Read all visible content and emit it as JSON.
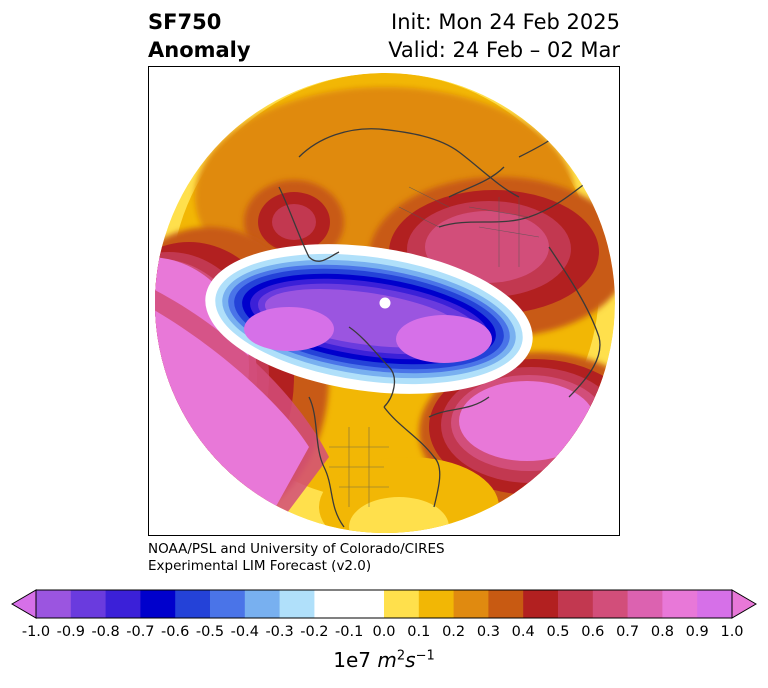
{
  "title": {
    "variable": "SF750",
    "subtitle": "Anomaly",
    "init": "Init: Mon 24 Feb 2025",
    "valid": "Valid: 24 Feb – 02 Mar"
  },
  "credit": {
    "line1": "NOAA/PSL and University of Colorado/CIRES",
    "line2": "Experimental LIM Forecast (v2.0)"
  },
  "colorbar": {
    "unit_prefix": "1e7 ",
    "unit_var": "m",
    "unit_exp1": "2",
    "unit_var2": "s",
    "unit_exp2": "−1",
    "ticks": [
      "-1.0",
      "-0.9",
      "-0.8",
      "-0.7",
      "-0.6",
      "-0.5",
      "-0.4",
      "-0.3",
      "-0.2",
      "-0.1",
      "0.0",
      "0.1",
      "0.2",
      "0.3",
      "0.4",
      "0.5",
      "0.6",
      "0.7",
      "0.8",
      "0.9",
      "1.0"
    ],
    "colors": [
      "#9b55e0",
      "#6a3bde",
      "#3b20d8",
      "#0000cc",
      "#2442d8",
      "#4a74e8",
      "#78b0f0",
      "#b0e0fa",
      "#ffffff",
      "#ffffff",
      "#ffe04c",
      "#f2b705",
      "#e08a10",
      "#c85a12",
      "#b22020",
      "#c23850",
      "#d24e7a",
      "#dc62b0",
      "#e878d8",
      "#d670e8"
    ],
    "under_color": "#d670e8",
    "over_color": "#e878d8"
  }
}
